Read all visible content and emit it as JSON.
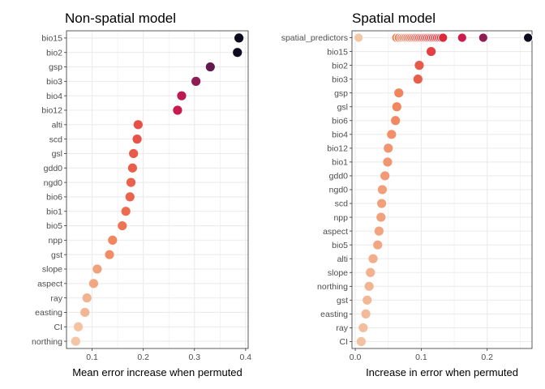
{
  "chart_data": [
    {
      "type": "scatter",
      "title": "Non-spatial model",
      "xlabel": "Mean error increase when permuted",
      "ylabel": "",
      "xlim": [
        0.05,
        0.405
      ],
      "xticks": [
        0.1,
        0.2,
        0.3,
        0.4
      ],
      "xtick_labels": [
        "0.1",
        "0.2",
        "0.3",
        "0.4"
      ],
      "grid": true,
      "color_scale": "light peach (low) to red to near-black (high), mapped to x value",
      "categories": [
        "bio15",
        "bio2",
        "gsp",
        "bio3",
        "bio4",
        "bio12",
        "alti",
        "scd",
        "gsl",
        "gdd0",
        "ngd0",
        "bio6",
        "bio1",
        "bio5",
        "npp",
        "gst",
        "slope",
        "aspect",
        "ray",
        "easting",
        "CI",
        "northing"
      ],
      "values": [
        0.387,
        0.384,
        0.331,
        0.303,
        0.275,
        0.267,
        0.19,
        0.188,
        0.181,
        0.179,
        0.176,
        0.174,
        0.166,
        0.159,
        0.14,
        0.134,
        0.11,
        0.103,
        0.09,
        0.086,
        0.073,
        0.068
      ]
    },
    {
      "type": "scatter",
      "title": "Spatial model",
      "xlabel": "Increase in error when permuted",
      "ylabel": "",
      "xlim": [
        -0.005,
        0.268
      ],
      "xticks": [
        0.0,
        0.1,
        0.2
      ],
      "xtick_labels": [
        "0.0",
        "0.1",
        "0.2"
      ],
      "grid": true,
      "color_scale": "light peach (low) to red to near-black (high), mapped to x value",
      "categories": [
        "spatial_predictors",
        "bio15",
        "bio2",
        "bio3",
        "gsp",
        "gsl",
        "bio6",
        "bio4",
        "bio12",
        "bio1",
        "gdd0",
        "ngd0",
        "scd",
        "npp",
        "aspect",
        "bio5",
        "alti",
        "slope",
        "northing",
        "gst",
        "easting",
        "ray",
        "CI"
      ],
      "values": [
        0.262,
        0.115,
        0.097,
        0.095,
        0.066,
        0.063,
        0.061,
        0.055,
        0.05,
        0.049,
        0.045,
        0.041,
        0.04,
        0.039,
        0.036,
        0.034,
        0.027,
        0.023,
        0.021,
        0.018,
        0.016,
        0.012,
        0.009
      ],
      "spatial_predictors_values": [
        0.005,
        0.062,
        0.066,
        0.07,
        0.073,
        0.076,
        0.079,
        0.082,
        0.085,
        0.088,
        0.091,
        0.094,
        0.097,
        0.1,
        0.103,
        0.106,
        0.109,
        0.112,
        0.115,
        0.118,
        0.121,
        0.124,
        0.127,
        0.13,
        0.133,
        0.162,
        0.194,
        0.262
      ]
    }
  ]
}
